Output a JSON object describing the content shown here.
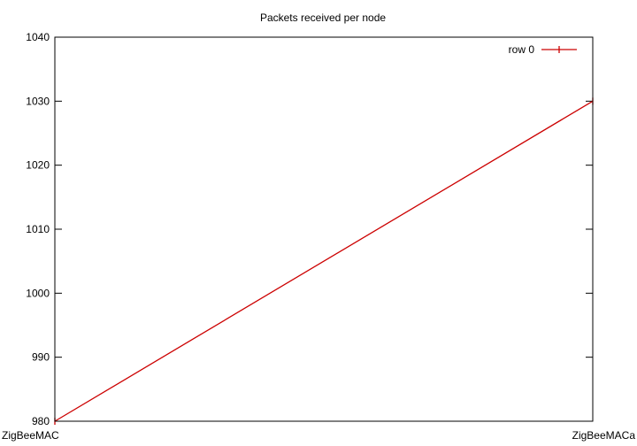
{
  "chart_data": {
    "type": "line",
    "title": "Packets received per node",
    "xlabel": "",
    "ylabel": "",
    "categories": [
      "ZigBeeMAC",
      "ZigBeeMACa"
    ],
    "series": [
      {
        "name": "row 0",
        "values": [
          980,
          1030
        ],
        "color": "#cc0000"
      }
    ],
    "ylim": [
      980,
      1040
    ],
    "yticks": [
      980,
      990,
      1000,
      1010,
      1020,
      1030,
      1040
    ],
    "grid": false,
    "legend_position": "top-right"
  }
}
